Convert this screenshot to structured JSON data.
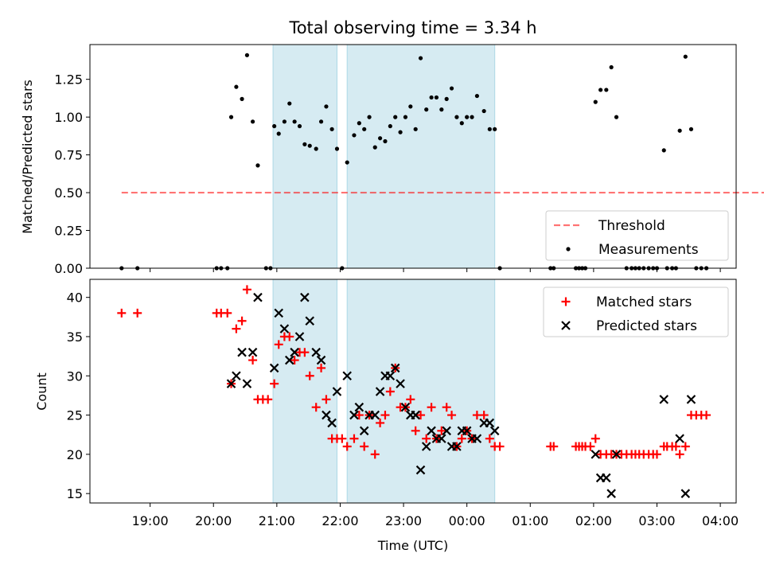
{
  "chart_data": {
    "type": "scatter",
    "title": "Total observing time = 3.34 h",
    "xlabel": "Time (UTC)",
    "x_unit": "hours",
    "x_ticks": [
      {
        "value": 19,
        "label": "19:00"
      },
      {
        "value": 20,
        "label": "20:00"
      },
      {
        "value": 21,
        "label": "21:00"
      },
      {
        "value": 22,
        "label": "22:00"
      },
      {
        "value": 23,
        "label": "23:00"
      },
      {
        "value": 24,
        "label": "00:00"
      },
      {
        "value": 25,
        "label": "01:00"
      },
      {
        "value": 26,
        "label": "02:00"
      },
      {
        "value": 27,
        "label": "03:00"
      },
      {
        "value": 28,
        "label": "04:00"
      }
    ],
    "xlim": [
      18.05,
      28.25
    ],
    "shaded_regions": [
      [
        20.94,
        21.95
      ],
      [
        22.11,
        24.44
      ]
    ],
    "shade_color": "#add8e6",
    "panels": [
      {
        "name": "ratio",
        "ylabel": "Matched/Predicted stars",
        "ylim": [
          0,
          1.48
        ],
        "yticks": [
          "0.00",
          "0.25",
          "0.50",
          "0.75",
          "1.00",
          "1.25"
        ],
        "threshold": {
          "name": "Threshold",
          "value": 0.5,
          "x_range": [
            18.55,
            28.8
          ],
          "color": "#ff0000"
        },
        "series": [
          {
            "name": "Measurements",
            "color": "#000000",
            "marker": "dot",
            "points": [
              [
                18.55,
                0
              ],
              [
                18.8,
                0
              ],
              [
                20.05,
                0
              ],
              [
                20.12,
                0
              ],
              [
                20.22,
                0
              ],
              [
                20.28,
                1.0
              ],
              [
                20.36,
                1.2
              ],
              [
                20.45,
                1.12
              ],
              [
                20.53,
                1.41
              ],
              [
                20.62,
                0.97
              ],
              [
                20.7,
                0.68
              ],
              [
                20.83,
                0
              ],
              [
                20.9,
                0
              ],
              [
                20.96,
                0.94
              ],
              [
                21.03,
                0.89
              ],
              [
                21.12,
                0.97
              ],
              [
                21.2,
                1.09
              ],
              [
                21.28,
                0.97
              ],
              [
                21.36,
                0.94
              ],
              [
                21.44,
                0.82
              ],
              [
                21.52,
                0.81
              ],
              [
                21.62,
                0.79
              ],
              [
                21.7,
                0.97
              ],
              [
                21.78,
                1.07
              ],
              [
                21.87,
                0.92
              ],
              [
                21.95,
                0.79
              ],
              [
                22.03,
                0
              ],
              [
                22.11,
                0.7
              ],
              [
                22.22,
                0.88
              ],
              [
                22.3,
                0.96
              ],
              [
                22.38,
                0.92
              ],
              [
                22.46,
                1.0
              ],
              [
                22.55,
                0.8
              ],
              [
                22.63,
                0.86
              ],
              [
                22.71,
                0.84
              ],
              [
                22.79,
                0.94
              ],
              [
                22.87,
                1.0
              ],
              [
                22.95,
                0.9
              ],
              [
                23.03,
                1.0
              ],
              [
                23.11,
                1.07
              ],
              [
                23.19,
                0.92
              ],
              [
                23.27,
                1.39
              ],
              [
                23.36,
                1.05
              ],
              [
                23.44,
                1.13
              ],
              [
                23.52,
                1.13
              ],
              [
                23.6,
                1.05
              ],
              [
                23.68,
                1.12
              ],
              [
                23.76,
                1.19
              ],
              [
                23.84,
                1.0
              ],
              [
                23.92,
                0.96
              ],
              [
                24.0,
                1.0
              ],
              [
                24.08,
                1.0
              ],
              [
                24.16,
                1.14
              ],
              [
                24.27,
                1.04
              ],
              [
                24.36,
                0.92
              ],
              [
                24.44,
                0.92
              ],
              [
                24.52,
                0
              ],
              [
                25.32,
                0
              ],
              [
                25.37,
                0
              ],
              [
                25.72,
                0
              ],
              [
                25.77,
                0
              ],
              [
                25.82,
                0
              ],
              [
                25.87,
                0
              ],
              [
                26.03,
                1.1
              ],
              [
                26.11,
                1.18
              ],
              [
                26.2,
                1.18
              ],
              [
                26.28,
                1.33
              ],
              [
                26.36,
                1.0
              ],
              [
                26.52,
                0
              ],
              [
                26.6,
                0
              ],
              [
                26.66,
                0
              ],
              [
                26.72,
                0
              ],
              [
                26.79,
                0
              ],
              [
                26.87,
                0
              ],
              [
                26.94,
                0
              ],
              [
                27.0,
                0
              ],
              [
                27.11,
                0.78
              ],
              [
                27.16,
                0
              ],
              [
                27.24,
                0
              ],
              [
                27.3,
                0
              ],
              [
                27.36,
                0.91
              ],
              [
                27.45,
                1.4
              ],
              [
                27.54,
                0.92
              ],
              [
                27.62,
                0
              ],
              [
                27.7,
                0
              ],
              [
                27.78,
                0
              ]
            ]
          }
        ],
        "legend_position": "lower-right"
      },
      {
        "name": "counts",
        "ylabel": "Count",
        "ylim": [
          13.8,
          42.3
        ],
        "yticks": [
          "15",
          "20",
          "25",
          "30",
          "35",
          "40"
        ],
        "series": [
          {
            "name": "Matched stars",
            "color": "#ff0000",
            "marker": "plus",
            "points": [
              [
                18.55,
                38
              ],
              [
                18.8,
                38
              ],
              [
                20.05,
                38
              ],
              [
                20.12,
                38
              ],
              [
                20.22,
                38
              ],
              [
                20.28,
                29
              ],
              [
                20.36,
                36
              ],
              [
                20.45,
                37
              ],
              [
                20.53,
                41
              ],
              [
                20.62,
                32
              ],
              [
                20.7,
                27
              ],
              [
                20.78,
                27
              ],
              [
                20.86,
                27
              ],
              [
                20.96,
                29
              ],
              [
                21.03,
                34
              ],
              [
                21.12,
                35
              ],
              [
                21.2,
                35
              ],
              [
                21.28,
                32
              ],
              [
                21.36,
                33
              ],
              [
                21.44,
                33
              ],
              [
                21.52,
                30
              ],
              [
                21.62,
                26
              ],
              [
                21.7,
                31
              ],
              [
                21.78,
                27
              ],
              [
                21.87,
                22
              ],
              [
                21.95,
                22
              ],
              [
                22.03,
                22
              ],
              [
                22.11,
                21
              ],
              [
                22.22,
                22
              ],
              [
                22.3,
                25
              ],
              [
                22.38,
                21
              ],
              [
                22.46,
                25
              ],
              [
                22.55,
                20
              ],
              [
                22.63,
                24
              ],
              [
                22.71,
                25
              ],
              [
                22.79,
                28
              ],
              [
                22.87,
                31
              ],
              [
                22.95,
                26
              ],
              [
                23.03,
                26
              ],
              [
                23.11,
                27
              ],
              [
                23.19,
                23
              ],
              [
                23.27,
                25
              ],
              [
                23.36,
                22
              ],
              [
                23.44,
                26
              ],
              [
                23.52,
                22
              ],
              [
                23.6,
                23
              ],
              [
                23.68,
                26
              ],
              [
                23.76,
                25
              ],
              [
                23.84,
                21
              ],
              [
                23.92,
                22
              ],
              [
                24.0,
                23
              ],
              [
                24.08,
                22
              ],
              [
                24.16,
                25
              ],
              [
                24.27,
                25
              ],
              [
                24.36,
                22
              ],
              [
                24.44,
                21
              ],
              [
                24.52,
                21
              ],
              [
                25.32,
                21
              ],
              [
                25.37,
                21
              ],
              [
                25.72,
                21
              ],
              [
                25.77,
                21
              ],
              [
                25.82,
                21
              ],
              [
                25.87,
                21
              ],
              [
                25.95,
                21
              ],
              [
                26.03,
                22
              ],
              [
                26.11,
                20
              ],
              [
                26.2,
                20
              ],
              [
                26.28,
                20
              ],
              [
                26.36,
                20
              ],
              [
                26.44,
                20
              ],
              [
                26.52,
                20
              ],
              [
                26.6,
                20
              ],
              [
                26.66,
                20
              ],
              [
                26.72,
                20
              ],
              [
                26.79,
                20
              ],
              [
                26.87,
                20
              ],
              [
                26.94,
                20
              ],
              [
                27.0,
                20
              ],
              [
                27.11,
                21
              ],
              [
                27.16,
                21
              ],
              [
                27.24,
                21
              ],
              [
                27.3,
                21
              ],
              [
                27.36,
                20
              ],
              [
                27.45,
                21
              ],
              [
                27.54,
                25
              ],
              [
                27.62,
                25
              ],
              [
                27.7,
                25
              ],
              [
                27.78,
                25
              ]
            ]
          },
          {
            "name": "Predicted stars",
            "color": "#000000",
            "marker": "cross",
            "points": [
              [
                20.28,
                29
              ],
              [
                20.36,
                30
              ],
              [
                20.45,
                33
              ],
              [
                20.53,
                29
              ],
              [
                20.62,
                33
              ],
              [
                20.7,
                40
              ],
              [
                20.96,
                31
              ],
              [
                21.03,
                38
              ],
              [
                21.12,
                36
              ],
              [
                21.2,
                32
              ],
              [
                21.28,
                33
              ],
              [
                21.36,
                35
              ],
              [
                21.44,
                40
              ],
              [
                21.52,
                37
              ],
              [
                21.62,
                33
              ],
              [
                21.7,
                32
              ],
              [
                21.78,
                25
              ],
              [
                21.87,
                24
              ],
              [
                21.95,
                28
              ],
              [
                22.11,
                30
              ],
              [
                22.22,
                25
              ],
              [
                22.3,
                26
              ],
              [
                22.38,
                23
              ],
              [
                22.46,
                25
              ],
              [
                22.55,
                25
              ],
              [
                22.63,
                28
              ],
              [
                22.71,
                30
              ],
              [
                22.79,
                30
              ],
              [
                22.87,
                31
              ],
              [
                22.95,
                29
              ],
              [
                23.03,
                26
              ],
              [
                23.11,
                25
              ],
              [
                23.19,
                25
              ],
              [
                23.27,
                18
              ],
              [
                23.36,
                21
              ],
              [
                23.44,
                23
              ],
              [
                23.52,
                22
              ],
              [
                23.6,
                22
              ],
              [
                23.68,
                23
              ],
              [
                23.76,
                21
              ],
              [
                23.84,
                21
              ],
              [
                23.92,
                23
              ],
              [
                24.0,
                23
              ],
              [
                24.08,
                22
              ],
              [
                24.16,
                22
              ],
              [
                24.27,
                24
              ],
              [
                24.36,
                24
              ],
              [
                24.44,
                23
              ],
              [
                26.03,
                20
              ],
              [
                26.11,
                17
              ],
              [
                26.2,
                17
              ],
              [
                26.28,
                15
              ],
              [
                26.36,
                20
              ],
              [
                27.11,
                27
              ],
              [
                27.36,
                22
              ],
              [
                27.45,
                15
              ],
              [
                27.54,
                27
              ]
            ]
          }
        ],
        "legend_position": "upper-right"
      }
    ]
  }
}
